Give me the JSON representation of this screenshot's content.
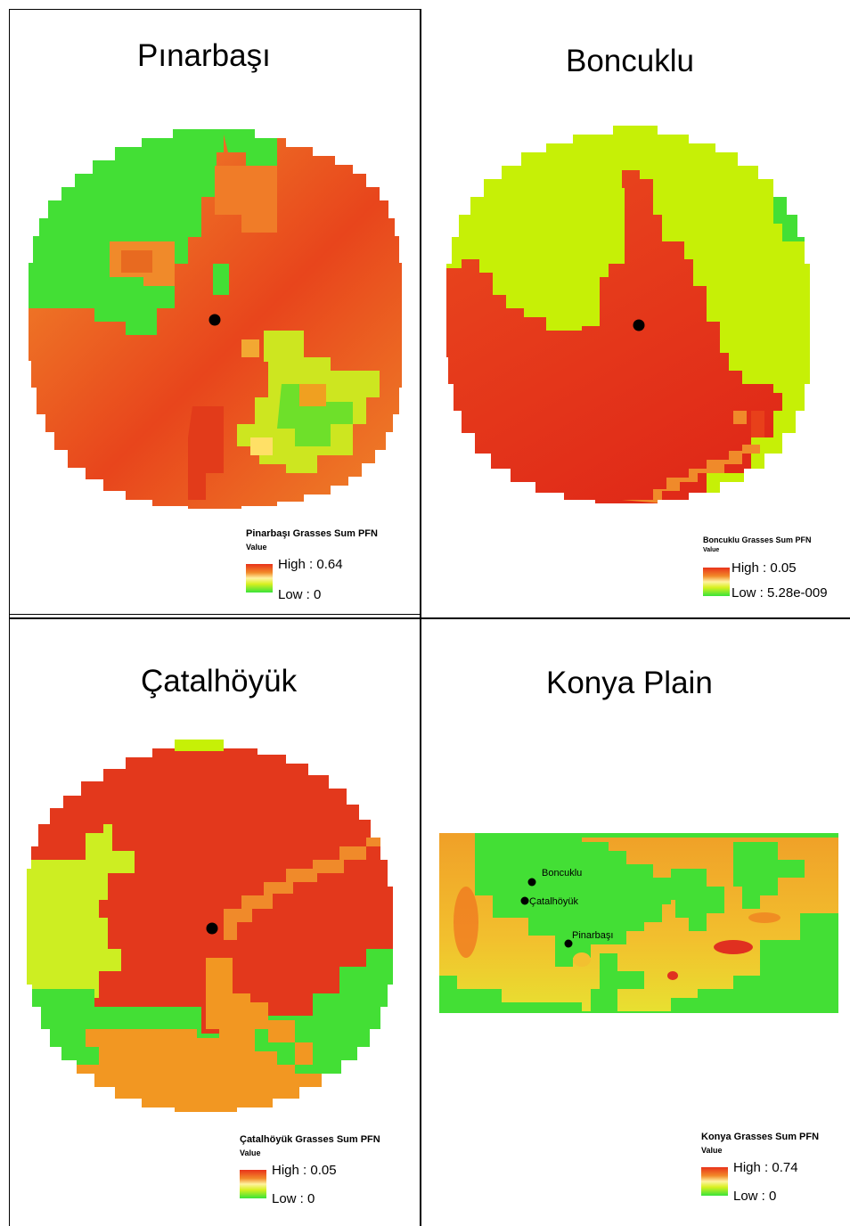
{
  "panels": {
    "pinarbasi": {
      "title": "Pınarbaşı",
      "legend": {
        "title": "Pinarbaşı Grasses Sum PFN",
        "value_label": "Value",
        "high": "High : 0.64",
        "low": "Low : 0"
      }
    },
    "boncuklu": {
      "title": "Boncuklu",
      "legend": {
        "title": "Boncuklu Grasses Sum PFN",
        "value_label": "Value",
        "high": "High : 0.05",
        "low": "Low : 5.28e-009"
      }
    },
    "catalhoyuk": {
      "title": "Çatalhöyük",
      "legend": {
        "title": "Çatalhöyük Grasses Sum PFN",
        "value_label": "Value",
        "high": "High : 0.05",
        "low": "Low : 0"
      }
    },
    "konya": {
      "title": "Konya Plain",
      "legend": {
        "title": "Konya Grasses Sum PFN",
        "value_label": "Value",
        "high": "High : 0.74",
        "low": "Low : 0"
      },
      "site_labels": [
        "Boncuklu",
        "Çatalhöyük",
        "Pinarbaşı"
      ]
    }
  },
  "colors": {
    "high": "#e8321a",
    "orange": "#f28a2a",
    "yellow_green": "#c8f000",
    "green": "#39e33a",
    "site_marker": "#000000"
  }
}
